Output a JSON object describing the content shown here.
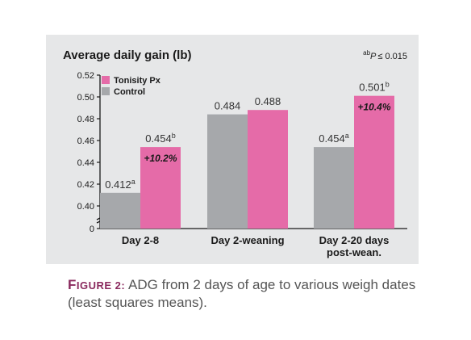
{
  "chart_data": {
    "type": "bar",
    "title": "Average daily gain (lb)",
    "significance_note": {
      "superscript": "ab",
      "text": "P",
      "operator": "≤ 0.015"
    },
    "categories": [
      {
        "lines": [
          "Day 2-8"
        ]
      },
      {
        "lines": [
          "Day 2-weaning"
        ]
      },
      {
        "lines": [
          "Day 2-20 days",
          "post-wean."
        ]
      }
    ],
    "series": [
      {
        "name": "Control",
        "color": "#a6a8ab",
        "values": [
          0.412,
          0.484,
          0.454
        ],
        "labels": [
          "0.412",
          "0.484",
          "0.454"
        ],
        "superscripts": [
          "a",
          "",
          "a"
        ]
      },
      {
        "name": "Tonisity Px",
        "color": "#e56ba8",
        "values": [
          0.454,
          0.488,
          0.501
        ],
        "labels": [
          "0.454",
          "0.488",
          "0.501"
        ],
        "superscripts": [
          "b",
          "",
          "b"
        ]
      }
    ],
    "legend_order": [
      "Tonisity Px",
      "Control"
    ],
    "legend_placement": "top-left",
    "annotations": [
      "+10.2%",
      "",
      "+10.4%"
    ],
    "y_ticks": [
      "0.52",
      "0.50",
      "0.48",
      "0.46",
      "0.44",
      "0.42",
      "0.40",
      "0"
    ],
    "y_tick_values": [
      0.52,
      0.5,
      0.48,
      0.46,
      0.44,
      0.42,
      0.4
    ],
    "y_zero_label": "0",
    "ylim": [
      0.38,
      0.52
    ],
    "axis_break": true,
    "grid": false
  },
  "caption": {
    "label_first": "F",
    "label_rest": "IGURE 2:",
    "text": "ADG from 2 days of age to various weigh dates (least squares means)."
  }
}
